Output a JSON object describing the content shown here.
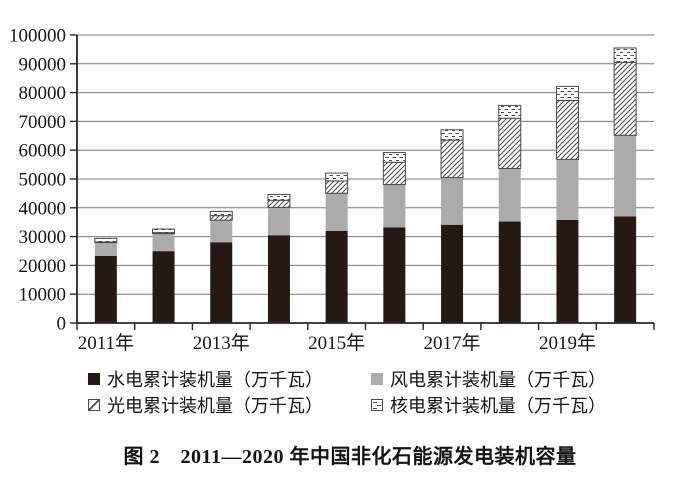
{
  "figure": {
    "caption": "图 2　2011—2020 年中国非化石能源发电装机容量"
  },
  "legend": {
    "items": [
      {
        "key": "hydro",
        "label": "水电累计装机量（万千瓦）",
        "swatch": "solid-black"
      },
      {
        "key": "wind",
        "label": "风电累计装机量（万千瓦）",
        "swatch": "solid-gray"
      },
      {
        "key": "solar",
        "label": "光电累计装机量（万千瓦）",
        "swatch": "diagonal-hatch"
      },
      {
        "key": "nuclear",
        "label": "核电累计装机量（万千瓦）",
        "swatch": "dash-hatch"
      }
    ]
  },
  "colors": {
    "bar_black": "#251914",
    "bar_gray": "#ababab",
    "hatch_line": "#4a4a4a",
    "gridline": "#7c7c7c",
    "axis": "#262626",
    "text": "#141414"
  },
  "chart_data": {
    "type": "bar",
    "stacked": true,
    "title": "",
    "xlabel": "",
    "ylabel": "",
    "categories": [
      "2011年",
      "2012年",
      "2013年",
      "2014年",
      "2015年",
      "2016年",
      "2017年",
      "2018年",
      "2019年",
      "2020年"
    ],
    "x_tick_labels": [
      "2011年",
      "2013年",
      "2015年",
      "2017年",
      "2019年"
    ],
    "series": [
      {
        "key": "hydro",
        "name": "水电累计装机量（万千瓦）",
        "style": "solid-black",
        "values": [
          23298,
          24947,
          28044,
          30486,
          31954,
          33211,
          34119,
          35226,
          35804,
          37016
        ]
      },
      {
        "key": "wind",
        "name": "风电累计装机量（万千瓦）",
        "style": "solid-gray",
        "values": [
          4623,
          6083,
          7652,
          9657,
          13075,
          14864,
          16367,
          18426,
          21005,
          28153
        ]
      },
      {
        "key": "solar",
        "name": "光电累计装机量（万千瓦）",
        "style": "diagonal-hatch",
        "values": [
          222,
          341,
          1589,
          2486,
          4318,
          7742,
          13025,
          17446,
          20468,
          25343
        ]
      },
      {
        "key": "nuclear",
        "name": "核电累计装机量（万千瓦）",
        "style": "dash-hatch",
        "values": [
          1257,
          1257,
          1466,
          2008,
          2717,
          3364,
          3582,
          4466,
          4874,
          4989
        ]
      }
    ],
    "ylim": [
      0,
      100000
    ],
    "y_ticks": [
      0,
      10000,
      20000,
      30000,
      40000,
      50000,
      60000,
      70000,
      80000,
      90000,
      100000
    ],
    "grid": true,
    "legend_position": "bottom",
    "unit": "万千瓦"
  }
}
